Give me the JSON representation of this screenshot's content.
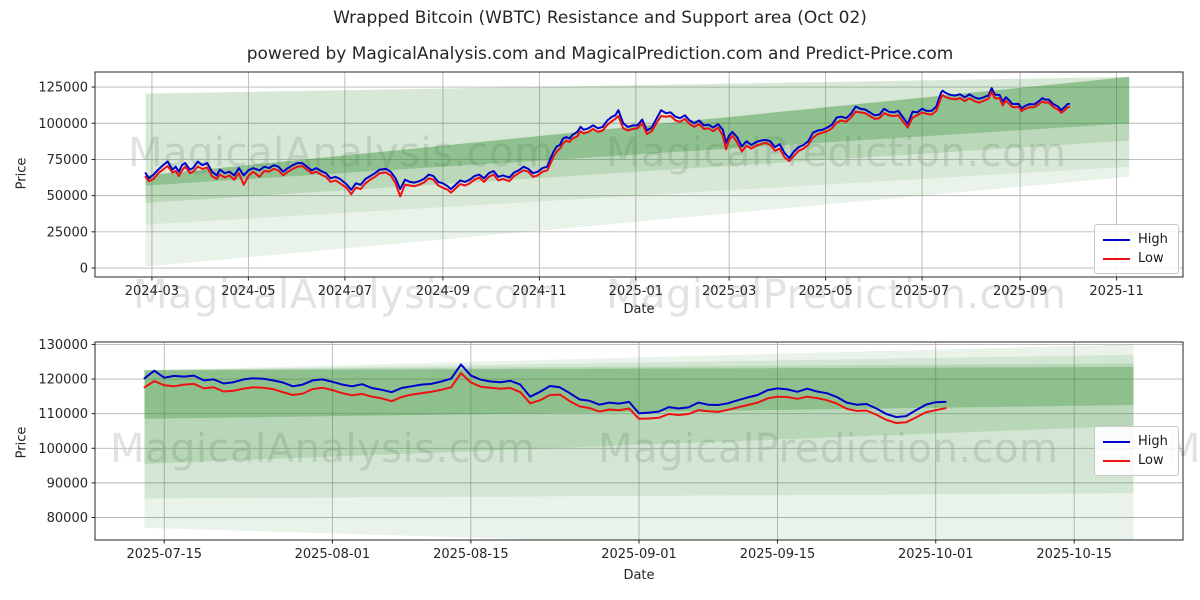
{
  "page": {
    "title": "Wrapped Bitcoin (WBTC) Resistance and Support area (Oct 02)",
    "subtitle": "powered by MagicalAnalysis.com and MagicalPrediction.com and Predict-Price.com"
  },
  "watermarks": {
    "analysis": "MagicalAnalysis.com",
    "prediction": "MagicalPrediction.com"
  },
  "legend": {
    "high_label": "High",
    "low_label": "Low"
  },
  "colors": {
    "high": "#0000cc",
    "low": "#ee1111",
    "band": "#2e8b2e",
    "grid": "#b6b6b6",
    "frame": "#262626",
    "text": "#262626"
  },
  "chart_data": [
    {
      "type": "line",
      "name": "full-history-chart",
      "xlabel": "Date",
      "ylabel": "Price",
      "grid": true,
      "legend_position": "right-middle",
      "x_range": [
        "2024-01-25",
        "2025-12-13"
      ],
      "y_range": [
        -6200,
        135400
      ],
      "x_ticks": [
        "2024-03",
        "2024-05",
        "2024-07",
        "2024-09",
        "2024-11",
        "2025-01",
        "2025-03",
        "2025-05",
        "2025-07",
        "2025-09",
        "2025-11"
      ],
      "y_ticks": [
        0,
        25000,
        50000,
        75000,
        100000,
        125000
      ],
      "bands": [
        {
          "x0": "2024-02-26",
          "x1": "2025-11-09",
          "top0": 120500,
          "top1": 132000,
          "bot0": 1000,
          "bot1": 63000,
          "opacity": 0.1
        },
        {
          "x0": "2024-02-26",
          "x1": "2025-11-09",
          "top0": 120500,
          "top1": 132000,
          "bot0": 30000,
          "bot1": 70000,
          "opacity": 0.1
        },
        {
          "x0": "2024-02-26",
          "x1": "2025-11-09",
          "top0": 64000,
          "top1": 132000,
          "bot0": 45000,
          "bot1": 88000,
          "opacity": 0.16
        },
        {
          "x0": "2024-02-26",
          "x1": "2025-11-09",
          "top0": 64000,
          "top1": 132000,
          "bot0": 57000,
          "bot1": 100000,
          "opacity": 0.3
        }
      ],
      "series": [
        {
          "name": "High",
          "color_key": "high"
        },
        {
          "name": "Low",
          "color_key": "low"
        }
      ],
      "dates": [
        "2024-02-26",
        "2024-02-28",
        "2024-03-02",
        "2024-03-05",
        "2024-03-08",
        "2024-03-11",
        "2024-03-14",
        "2024-03-16",
        "2024-03-18",
        "2024-03-20",
        "2024-03-22",
        "2024-03-25",
        "2024-03-27",
        "2024-03-30",
        "2024-04-02",
        "2024-04-05",
        "2024-04-08",
        "2024-04-11",
        "2024-04-13",
        "2024-04-16",
        "2024-04-19",
        "2024-04-22",
        "2024-04-25",
        "2024-04-28",
        "2024-05-01",
        "2024-05-04",
        "2024-05-08",
        "2024-05-11",
        "2024-05-14",
        "2024-05-17",
        "2024-05-20",
        "2024-05-23",
        "2024-05-26",
        "2024-05-29",
        "2024-06-01",
        "2024-06-04",
        "2024-06-07",
        "2024-06-10",
        "2024-06-13",
        "2024-06-16",
        "2024-06-19",
        "2024-06-22",
        "2024-06-25",
        "2024-06-28",
        "2024-07-02",
        "2024-07-05",
        "2024-07-08",
        "2024-07-11",
        "2024-07-14",
        "2024-07-17",
        "2024-07-20",
        "2024-07-23",
        "2024-07-27",
        "2024-07-30",
        "2024-08-02",
        "2024-08-05",
        "2024-08-08",
        "2024-08-11",
        "2024-08-14",
        "2024-08-17",
        "2024-08-20",
        "2024-08-23",
        "2024-08-26",
        "2024-08-29",
        "2024-09-01",
        "2024-09-04",
        "2024-09-06",
        "2024-09-09",
        "2024-09-12",
        "2024-09-15",
        "2024-09-18",
        "2024-09-21",
        "2024-09-24",
        "2024-09-27",
        "2024-09-30",
        "2024-10-03",
        "2024-10-06",
        "2024-10-09",
        "2024-10-13",
        "2024-10-16",
        "2024-10-19",
        "2024-10-22",
        "2024-10-25",
        "2024-10-28",
        "2024-10-31",
        "2024-11-03",
        "2024-11-06",
        "2024-11-08",
        "2024-11-10",
        "2024-11-12",
        "2024-11-14",
        "2024-11-16",
        "2024-11-18",
        "2024-11-20",
        "2024-11-22",
        "2024-11-25",
        "2024-11-27",
        "2024-11-29",
        "2024-12-02",
        "2024-12-05",
        "2024-12-08",
        "2024-12-11",
        "2024-12-14",
        "2024-12-17",
        "2024-12-19",
        "2024-12-21",
        "2024-12-24",
        "2024-12-27",
        "2024-12-30",
        "2025-01-02",
        "2025-01-05",
        "2025-01-08",
        "2025-01-11",
        "2025-01-14",
        "2025-01-17",
        "2025-01-20",
        "2025-01-23",
        "2025-01-26",
        "2025-01-29",
        "2025-02-01",
        "2025-02-04",
        "2025-02-07",
        "2025-02-10",
        "2025-02-13",
        "2025-02-16",
        "2025-02-19",
        "2025-02-22",
        "2025-02-25",
        "2025-02-27",
        "2025-03-01",
        "2025-03-03",
        "2025-03-06",
        "2025-03-09",
        "2025-03-12",
        "2025-03-15",
        "2025-03-18",
        "2025-03-21",
        "2025-03-24",
        "2025-03-27",
        "2025-03-30",
        "2025-04-02",
        "2025-04-05",
        "2025-04-08",
        "2025-04-11",
        "2025-04-14",
        "2025-04-17",
        "2025-04-20",
        "2025-04-23",
        "2025-04-26",
        "2025-04-29",
        "2025-05-02",
        "2025-05-05",
        "2025-05-08",
        "2025-05-11",
        "2025-05-14",
        "2025-05-17",
        "2025-05-20",
        "2025-05-23",
        "2025-05-26",
        "2025-05-29",
        "2025-06-01",
        "2025-06-04",
        "2025-06-07",
        "2025-06-10",
        "2025-06-13",
        "2025-06-16",
        "2025-06-19",
        "2025-06-22",
        "2025-06-25",
        "2025-06-28",
        "2025-07-01",
        "2025-07-04",
        "2025-07-07",
        "2025-07-10",
        "2025-07-13",
        "2025-07-14",
        "2025-07-16",
        "2025-07-19",
        "2025-07-22",
        "2025-07-25",
        "2025-07-28",
        "2025-07-31",
        "2025-08-03",
        "2025-08-06",
        "2025-08-09",
        "2025-08-12",
        "2025-08-14",
        "2025-08-16",
        "2025-08-19",
        "2025-08-21",
        "2025-08-23",
        "2025-08-25",
        "2025-08-27",
        "2025-08-29",
        "2025-08-31",
        "2025-09-02",
        "2025-09-04",
        "2025-09-07",
        "2025-09-10",
        "2025-09-13",
        "2025-09-15",
        "2025-09-17",
        "2025-09-19",
        "2025-09-22",
        "2025-09-25",
        "2025-09-27",
        "2025-09-29",
        "2025-10-01",
        "2025-10-02"
      ],
      "high": [
        65500,
        62000,
        64500,
        68000,
        71000,
        73500,
        68000,
        70000,
        66500,
        71000,
        72500,
        68000,
        69000,
        73500,
        71000,
        72500,
        66500,
        64000,
        68000,
        65500,
        66500,
        64000,
        69000,
        64000,
        67500,
        69000,
        67500,
        70000,
        69000,
        71000,
        70000,
        66500,
        69000,
        71000,
        72500,
        72500,
        70000,
        67500,
        69000,
        67000,
        65500,
        62000,
        63000,
        61500,
        58000,
        54000,
        58500,
        57500,
        61500,
        63500,
        65500,
        68000,
        68500,
        66500,
        62000,
        54500,
        61000,
        59500,
        59000,
        60000,
        61500,
        64500,
        63500,
        59500,
        58500,
        56500,
        54500,
        57500,
        60500,
        59500,
        61000,
        63500,
        64500,
        62000,
        65500,
        67000,
        63000,
        64000,
        62500,
        66000,
        67500,
        70000,
        68500,
        65500,
        66500,
        69000,
        70000,
        75500,
        80500,
        84000,
        85000,
        89500,
        90500,
        89500,
        92000,
        94000,
        97500,
        95500,
        96500,
        98500,
        96500,
        97500,
        102000,
        104500,
        105500,
        109000,
        100000,
        97500,
        98500,
        98500,
        102500,
        95000,
        97000,
        103000,
        109000,
        107000,
        107500,
        104500,
        103500,
        105500,
        102000,
        100000,
        102000,
        98500,
        99000,
        97000,
        99500,
        95500,
        86500,
        91500,
        94000,
        90500,
        84000,
        87500,
        85000,
        87000,
        88000,
        88500,
        87500,
        83500,
        85500,
        79500,
        76000,
        80500,
        83500,
        85000,
        87500,
        93500,
        95000,
        95500,
        97000,
        99000,
        104000,
        104500,
        103500,
        106500,
        111500,
        110000,
        109500,
        107500,
        105500,
        106000,
        110000,
        108000,
        107500,
        108500,
        104000,
        99500,
        108000,
        107500,
        110000,
        108500,
        108500,
        111500,
        121000,
        122500,
        120900,
        119600,
        119100,
        120100,
        117900,
        119900,
        117900,
        116900,
        117900,
        119300,
        124200,
        119800,
        119500,
        114900,
        118000,
        115900,
        113400,
        113200,
        113400,
        110300,
        111900,
        113200,
        113000,
        115400,
        117300,
        116300,
        116400,
        113200,
        111500,
        109000,
        111000,
        113300,
        113400
      ],
      "low": [
        63000,
        60000,
        61500,
        65500,
        68000,
        70500,
        66000,
        67000,
        63500,
        67500,
        70000,
        65500,
        66500,
        70000,
        68500,
        69500,
        63500,
        61500,
        64500,
        62500,
        64000,
        61000,
        65500,
        57500,
        63500,
        66500,
        63000,
        67000,
        66500,
        68500,
        67500,
        64000,
        66500,
        68500,
        70000,
        70500,
        68000,
        65500,
        66500,
        64500,
        63000,
        59500,
        60500,
        58500,
        55500,
        51000,
        55500,
        54500,
        58500,
        61000,
        63000,
        65500,
        66000,
        64000,
        58500,
        49500,
        57500,
        57000,
        56500,
        57500,
        59000,
        62000,
        61000,
        57000,
        55500,
        54000,
        52000,
        55000,
        58000,
        57000,
        58500,
        61000,
        62500,
        59500,
        63000,
        64500,
        60500,
        61500,
        60000,
        63500,
        65500,
        67500,
        66500,
        63000,
        64000,
        66500,
        67500,
        72000,
        77000,
        80500,
        82500,
        86000,
        88000,
        87000,
        89500,
        91000,
        94500,
        93000,
        94000,
        96000,
        94000,
        95000,
        99000,
        101500,
        103000,
        105000,
        96500,
        95000,
        96000,
        96500,
        100000,
        92500,
        94500,
        100000,
        105000,
        104500,
        105000,
        102000,
        101000,
        103000,
        99500,
        97500,
        99500,
        96000,
        96500,
        94500,
        97000,
        91500,
        82000,
        88500,
        91500,
        87000,
        80500,
        84500,
        82500,
        84500,
        85500,
        86500,
        85000,
        81000,
        82500,
        76500,
        74000,
        77500,
        81000,
        82500,
        85000,
        90000,
        92500,
        93500,
        94500,
        96500,
        100500,
        102000,
        101000,
        104000,
        108000,
        107500,
        107000,
        105000,
        103000,
        103500,
        107000,
        105500,
        105000,
        105500,
        101000,
        97000,
        104000,
        105500,
        107500,
        106500,
        106000,
        108500,
        117500,
        119500,
        118000,
        117000,
        116500,
        117400,
        115300,
        117300,
        115400,
        114200,
        115500,
        117000,
        121800,
        117300,
        117300,
        112400,
        115600,
        113500,
        111200,
        111000,
        111400,
        108400,
        109900,
        111100,
        111000,
        113300,
        115000,
        114200,
        114400,
        111200,
        109400,
        107200,
        108800,
        111000,
        111300
      ]
    },
    {
      "type": "line",
      "name": "recent-window-chart",
      "xlabel": "Date",
      "ylabel": "Price",
      "grid": true,
      "legend_position": "right-middle",
      "x_range": [
        "2025-07-08",
        "2025-10-26"
      ],
      "y_range": [
        73500,
        130700
      ],
      "x_ticks": [
        "2025-07-15",
        "2025-08-01",
        "2025-08-15",
        "2025-09-01",
        "2025-09-15",
        "2025-10-01",
        "2025-10-15"
      ],
      "y_ticks": [
        80000,
        90000,
        100000,
        110000,
        120000,
        130000
      ],
      "bands": [
        {
          "x0": "2025-07-13",
          "x1": "2025-10-21",
          "top0": 122500,
          "top1": 130000,
          "bot0": 77000,
          "bot1": 68500,
          "opacity": 0.1
        },
        {
          "x0": "2025-07-13",
          "x1": "2025-10-21",
          "top0": 122500,
          "top1": 127000,
          "bot0": 85500,
          "bot1": 87000,
          "opacity": 0.12
        },
        {
          "x0": "2025-07-13",
          "x1": "2025-10-21",
          "top0": 122700,
          "top1": 124500,
          "bot0": 95500,
          "bot1": 106500,
          "opacity": 0.16
        },
        {
          "x0": "2025-07-13",
          "x1": "2025-10-21",
          "top0": 122500,
          "top1": 123500,
          "bot0": 108500,
          "bot1": 112500,
          "opacity": 0.3
        }
      ],
      "series": [
        {
          "name": "High",
          "color_key": "high"
        },
        {
          "name": "Low",
          "color_key": "low"
        }
      ],
      "dates": [
        "2025-07-13",
        "2025-07-14",
        "2025-07-15",
        "2025-07-16",
        "2025-07-17",
        "2025-07-18",
        "2025-07-19",
        "2025-07-20",
        "2025-07-21",
        "2025-07-22",
        "2025-07-23",
        "2025-07-24",
        "2025-07-25",
        "2025-07-26",
        "2025-07-27",
        "2025-07-28",
        "2025-07-29",
        "2025-07-30",
        "2025-07-31",
        "2025-08-01",
        "2025-08-02",
        "2025-08-03",
        "2025-08-04",
        "2025-08-05",
        "2025-08-06",
        "2025-08-07",
        "2025-08-08",
        "2025-08-09",
        "2025-08-10",
        "2025-08-11",
        "2025-08-12",
        "2025-08-13",
        "2025-08-14",
        "2025-08-15",
        "2025-08-16",
        "2025-08-17",
        "2025-08-18",
        "2025-08-19",
        "2025-08-20",
        "2025-08-21",
        "2025-08-22",
        "2025-08-23",
        "2025-08-24",
        "2025-08-25",
        "2025-08-26",
        "2025-08-27",
        "2025-08-28",
        "2025-08-29",
        "2025-08-30",
        "2025-08-31",
        "2025-09-01",
        "2025-09-02",
        "2025-09-03",
        "2025-09-04",
        "2025-09-05",
        "2025-09-06",
        "2025-09-07",
        "2025-09-08",
        "2025-09-09",
        "2025-09-10",
        "2025-09-11",
        "2025-09-12",
        "2025-09-13",
        "2025-09-14",
        "2025-09-15",
        "2025-09-16",
        "2025-09-17",
        "2025-09-18",
        "2025-09-19",
        "2025-09-20",
        "2025-09-21",
        "2025-09-22",
        "2025-09-23",
        "2025-09-24",
        "2025-09-25",
        "2025-09-26",
        "2025-09-27",
        "2025-09-28",
        "2025-09-29",
        "2025-09-30",
        "2025-10-01",
        "2025-10-02"
      ],
      "high": [
        120200,
        122400,
        120400,
        120900,
        120700,
        121000,
        119600,
        119900,
        118700,
        119100,
        119900,
        120200,
        120100,
        119600,
        119000,
        117900,
        118400,
        119600,
        119900,
        119200,
        118400,
        117900,
        118500,
        117400,
        116900,
        116200,
        117400,
        117900,
        118400,
        118600,
        119300,
        120100,
        124200,
        121000,
        119800,
        119300,
        119100,
        119500,
        118400,
        114900,
        116300,
        118000,
        117600,
        115900,
        114100,
        113700,
        112600,
        113200,
        112900,
        113400,
        110100,
        110300,
        110600,
        111900,
        111500,
        111800,
        113200,
        112600,
        112500,
        113000,
        113900,
        114700,
        115400,
        116800,
        117300,
        117000,
        116300,
        117200,
        116400,
        115900,
        114800,
        113200,
        112600,
        112800,
        111500,
        109900,
        109000,
        109300,
        111000,
        112600,
        113300,
        113400
      ],
      "low": [
        117600,
        119400,
        118200,
        117900,
        118400,
        118600,
        117300,
        117600,
        116400,
        116600,
        117200,
        117600,
        117500,
        117100,
        116200,
        115400,
        115800,
        117100,
        117500,
        116800,
        115900,
        115300,
        115700,
        114900,
        114400,
        113600,
        114800,
        115500,
        115900,
        116300,
        116900,
        117600,
        121700,
        119000,
        117800,
        117500,
        117200,
        117400,
        116200,
        113000,
        113900,
        115400,
        115500,
        113600,
        112100,
        111600,
        110600,
        111200,
        111000,
        111500,
        108500,
        108600,
        108800,
        109900,
        109600,
        109900,
        111000,
        110700,
        110500,
        111100,
        111800,
        112500,
        113200,
        114400,
        114900,
        114800,
        114300,
        114900,
        114500,
        113900,
        112900,
        111400,
        110800,
        110900,
        109700,
        108200,
        107300,
        107500,
        108900,
        110400,
        111000,
        111600
      ]
    }
  ]
}
